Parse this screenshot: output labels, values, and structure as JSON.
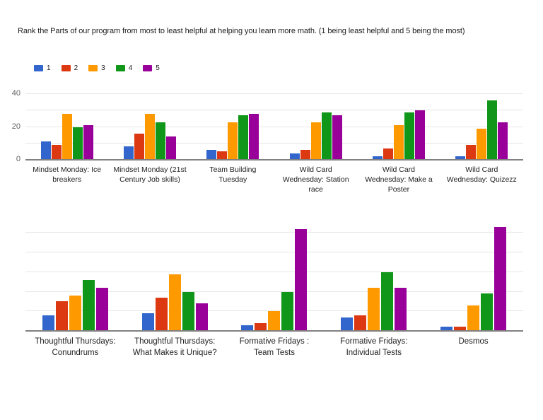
{
  "title": "Rank the Parts of our program from most to least helpful at helping you learn more math. (1 being least helpful and 5 being the most)",
  "legend": {
    "items": [
      {
        "label": "1",
        "color": "#3366CC"
      },
      {
        "label": "2",
        "color": "#DC3912"
      },
      {
        "label": "3",
        "color": "#FF9900"
      },
      {
        "label": "4",
        "color": "#109618"
      },
      {
        "label": "5",
        "color": "#990099"
      }
    ]
  },
  "chart_data": [
    {
      "type": "bar",
      "title": "Ratings row 1",
      "categories": [
        "Mindset Monday: Ice breakers",
        "Mindset Monday (21st Century Job skills)",
        "Team Building Tuesday",
        "Wild Card Wednesday: Station race",
        "Wild Card Wednesday: Make a Poster",
        "Wild Card Wednesday: Quizezz"
      ],
      "series": [
        {
          "name": "1",
          "color": "#3366CC",
          "values": [
            11,
            8,
            6,
            4,
            2,
            2
          ]
        },
        {
          "name": "2",
          "color": "#DC3912",
          "values": [
            9,
            16,
            5,
            6,
            7,
            9
          ]
        },
        {
          "name": "3",
          "color": "#FF9900",
          "values": [
            28,
            28,
            23,
            23,
            21,
            19
          ]
        },
        {
          "name": "4",
          "color": "#109618",
          "values": [
            20,
            23,
            27,
            29,
            29,
            36
          ]
        },
        {
          "name": "5",
          "color": "#990099",
          "values": [
            21,
            14,
            28,
            27,
            30,
            23
          ]
        }
      ],
      "xlabel": "",
      "ylabel": "",
      "ylim": [
        0,
        40
      ],
      "yticks": [
        0,
        20,
        40
      ],
      "gridlines": [
        10,
        20,
        30,
        40
      ],
      "grid": "on",
      "legend_position": "top"
    },
    {
      "type": "bar",
      "title": "Ratings row 2",
      "categories": [
        "Thoughtful Thursdays: Conundrums",
        "Thoughtful Thursdays: What Makes it Unique?",
        "Formative Fridays : Team Tests",
        "Formative Fridays: Individual Tests",
        "Desmos"
      ],
      "series": [
        {
          "name": "1",
          "color": "#3366CC",
          "values": [
            8,
            9,
            3,
            7,
            2
          ]
        },
        {
          "name": "2",
          "color": "#DC3912",
          "values": [
            15,
            17,
            4,
            8,
            2
          ]
        },
        {
          "name": "3",
          "color": "#FF9900",
          "values": [
            18,
            29,
            10,
            22,
            13
          ]
        },
        {
          "name": "4",
          "color": "#109618",
          "values": [
            26,
            20,
            20,
            30,
            19
          ]
        },
        {
          "name": "5",
          "color": "#990099",
          "values": [
            22,
            14,
            52,
            22,
            53
          ]
        }
      ],
      "xlabel": "",
      "ylabel": "",
      "ylim": [
        0,
        57
      ],
      "yticks": [],
      "gridlines": [
        10,
        20,
        30,
        40,
        50
      ],
      "grid": "on",
      "legend_position": "none"
    }
  ]
}
